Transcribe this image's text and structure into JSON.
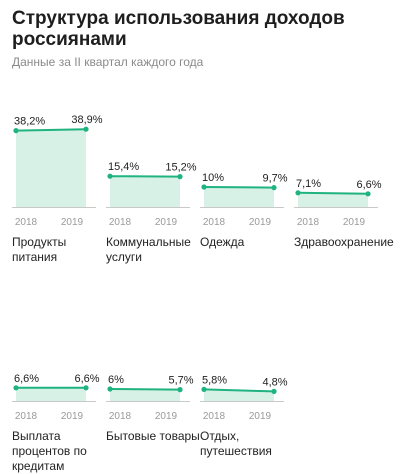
{
  "title": "Структура использования доходов россиянами",
  "subtitle": "Данные за II квартал каждого года",
  "colors": {
    "line": "#1fb380",
    "fill": "#d7f1e6",
    "axis": "#c9c9c9",
    "year": "#9a9a9a"
  },
  "chart_data": {
    "type": "area",
    "title": "Структура использования доходов россиянами",
    "subtitle": "Данные за II квартал каждого года",
    "x": [
      "2018",
      "2019"
    ],
    "unit": "%",
    "ylim": [
      0,
      40
    ],
    "series": [
      {
        "name": "Продукты питания",
        "values": [
          38.2,
          38.9
        ],
        "labels": [
          "38,2%",
          "38,9%"
        ]
      },
      {
        "name": "Коммунальные услуги",
        "values": [
          15.4,
          15.2
        ],
        "labels": [
          "15,4%",
          "15,2%"
        ]
      },
      {
        "name": "Одежда",
        "values": [
          10,
          9.7
        ],
        "labels": [
          "10%",
          "9,7%"
        ]
      },
      {
        "name": "Здравоохранение",
        "values": [
          7.1,
          6.6
        ],
        "labels": [
          "7,1%",
          "6,6%"
        ]
      },
      {
        "name": "Выплата процентов по кредитам",
        "values": [
          6.6,
          6.6
        ],
        "labels": [
          "6,6%",
          "6,6%"
        ]
      },
      {
        "name": "Бытовые товары",
        "values": [
          6,
          5.7
        ],
        "labels": [
          "6%",
          "5,7%"
        ]
      },
      {
        "name": "Отдых, путешествия",
        "values": [
          5.8,
          4.8
        ],
        "labels": [
          "5,8%",
          "4,8%"
        ]
      }
    ]
  }
}
